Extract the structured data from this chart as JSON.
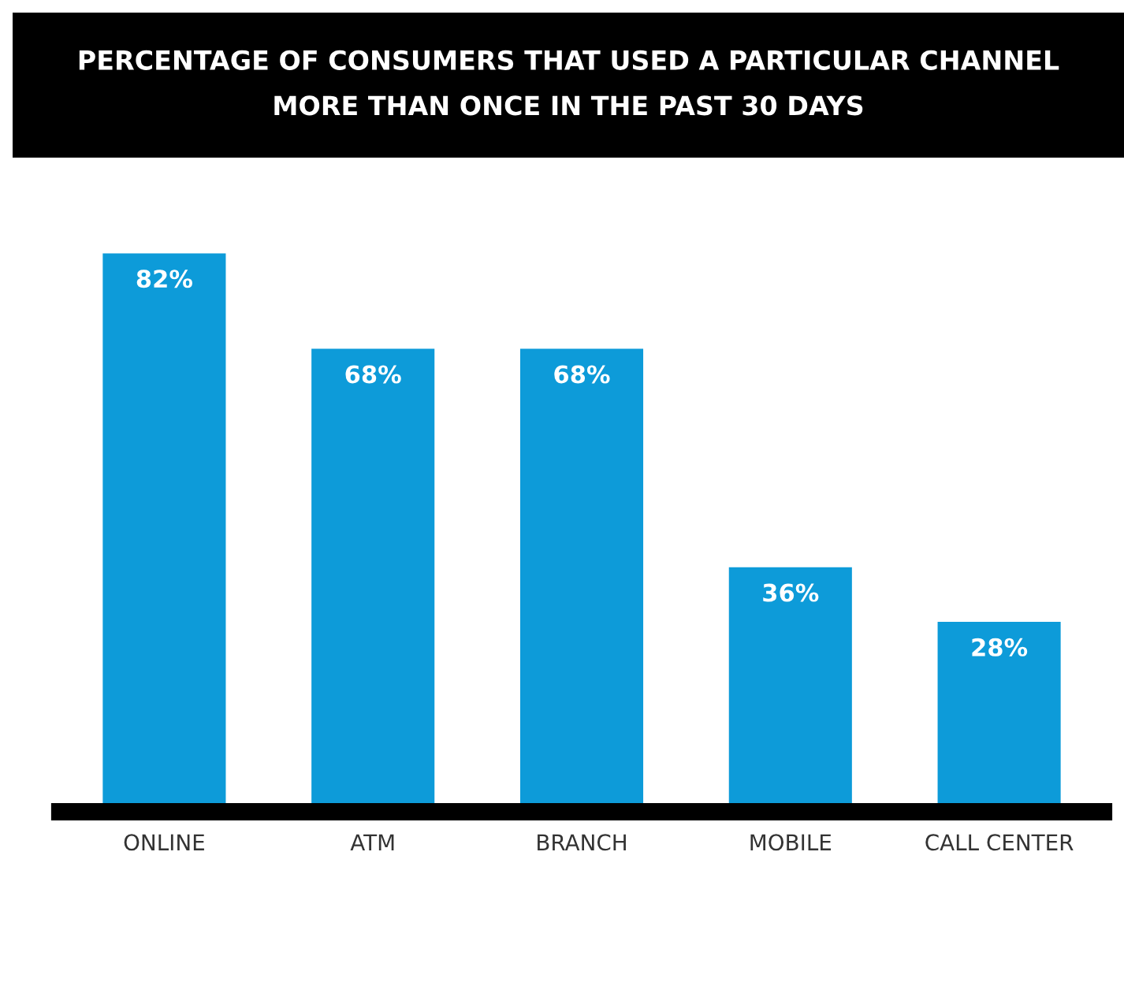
{
  "chart_data": {
    "type": "bar",
    "title": "PERCENTAGE OF CONSUMERS THAT USED A PARTICULAR CHANNEL\nMORE THAN ONCE IN THE PAST 30 DAYS",
    "categories": [
      "ONLINE",
      "ATM",
      "BRANCH",
      "MOBILE",
      "CALL CENTER"
    ],
    "values": [
      82,
      68,
      68,
      36,
      28
    ],
    "value_labels": [
      "82%",
      "68%",
      "68%",
      "36%",
      "28%"
    ],
    "color": "#0d9bd9",
    "tick_labels": "x",
    "grid": false,
    "legend": false
  }
}
